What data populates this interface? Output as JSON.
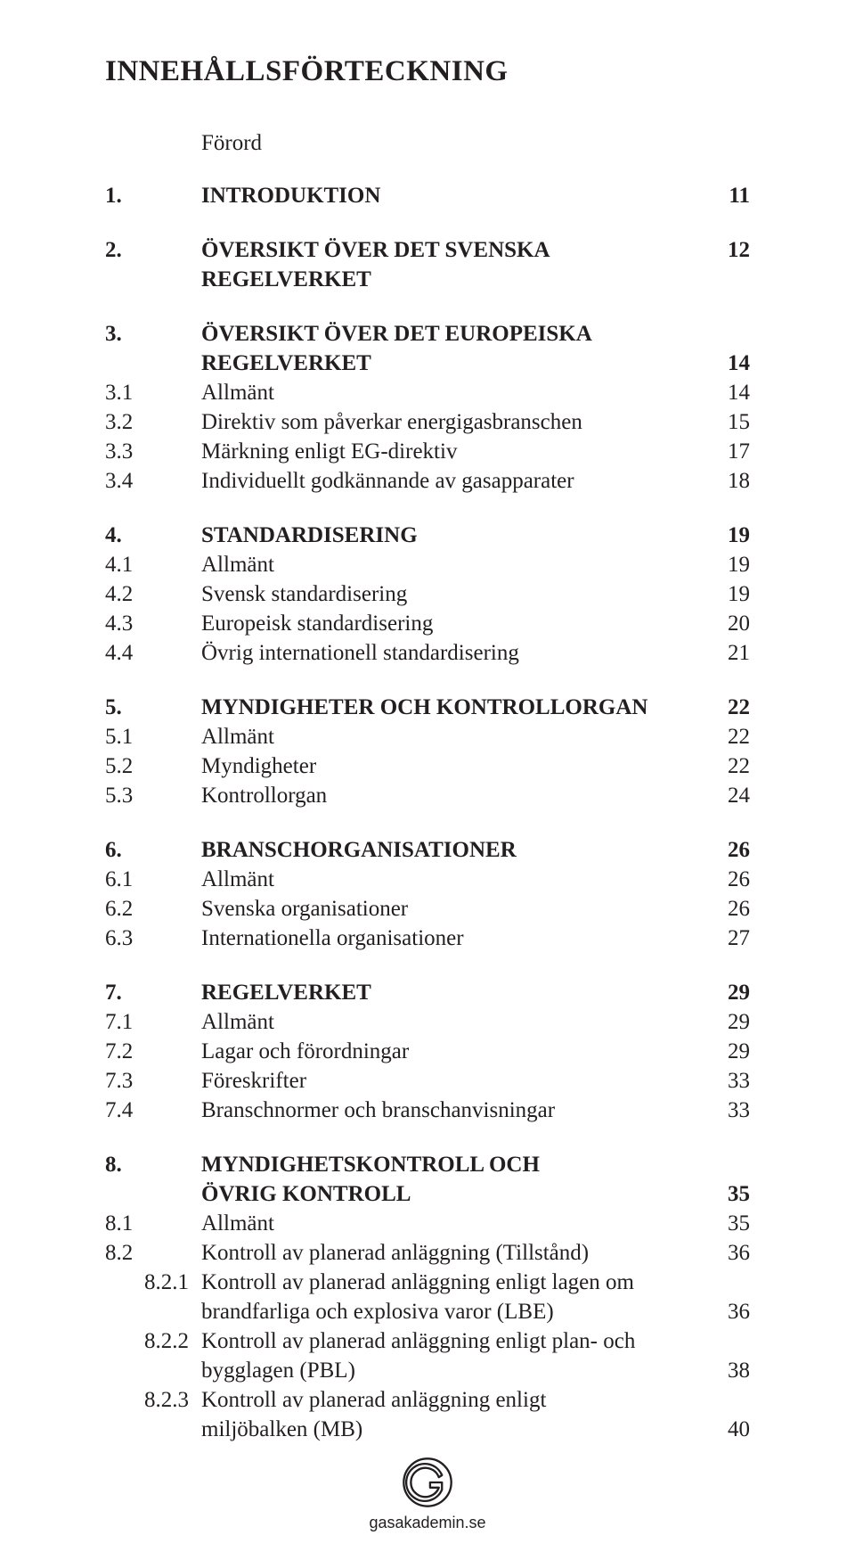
{
  "colors": {
    "text": "#231f20",
    "background": "#ffffff",
    "logo_stroke": "#231f20"
  },
  "typography": {
    "body_font": "Adobe Garamond Pro, Garamond, Times New Roman, serif",
    "body_size_pt": 19,
    "title_size_pt": 25,
    "footer_font": "Arial, Helvetica, sans-serif"
  },
  "title": "INNEHÅLLSFÖRTECKNING",
  "foreword": "Förord",
  "sections": [
    {
      "num": "1.",
      "label": "INTRODUKTION",
      "page": "11",
      "subs": []
    },
    {
      "num": "2.",
      "label": "ÖVERSIKT ÖVER DET SVENSKA REGELVERKET",
      "page": "12",
      "subs": []
    },
    {
      "num": "3.",
      "label_lines": [
        "ÖVERSIKT ÖVER DET EUROPEISKA",
        "REGELVERKET"
      ],
      "page": "14",
      "subs": [
        {
          "num": "3.1",
          "label": "Allmänt",
          "page": "14"
        },
        {
          "num": "3.2",
          "label": "Direktiv som påverkar energigasbranschen",
          "page": "15"
        },
        {
          "num": "3.3",
          "label": "Märkning enligt EG-direktiv",
          "page": "17"
        },
        {
          "num": "3.4",
          "label": "Individuellt godkännande av gasapparater",
          "page": "18"
        }
      ]
    },
    {
      "num": "4.",
      "label": "STANDARDISERING",
      "page": "19",
      "subs": [
        {
          "num": "4.1",
          "label": "Allmänt",
          "page": "19"
        },
        {
          "num": "4.2",
          "label": "Svensk standardisering",
          "page": "19"
        },
        {
          "num": "4.3",
          "label": "Europeisk standardisering",
          "page": "20"
        },
        {
          "num": "4.4",
          "label": "Övrig internationell standardisering",
          "page": "21"
        }
      ]
    },
    {
      "num": "5.",
      "label": "MYNDIGHETER OCH KONTROLLORGAN",
      "page": "22",
      "subs": [
        {
          "num": "5.1",
          "label": "Allmänt",
          "page": "22"
        },
        {
          "num": "5.2",
          "label": "Myndigheter",
          "page": "22"
        },
        {
          "num": "5.3",
          "label": "Kontrollorgan",
          "page": "24"
        }
      ]
    },
    {
      "num": "6.",
      "label": "BRANSCHORGANISATIONER",
      "page": "26",
      "subs": [
        {
          "num": "6.1",
          "label": "Allmänt",
          "page": "26"
        },
        {
          "num": "6.2",
          "label": "Svenska organisationer",
          "page": "26"
        },
        {
          "num": "6.3",
          "label": "Internationella organisationer",
          "page": "27"
        }
      ]
    },
    {
      "num": "7.",
      "label": "REGELVERKET",
      "page": "29",
      "subs": [
        {
          "num": "7.1",
          "label": "Allmänt",
          "page": "29"
        },
        {
          "num": "7.2",
          "label": "Lagar och förordningar",
          "page": "29"
        },
        {
          "num": "7.3",
          "label": "Föreskrifter",
          "page": "33"
        },
        {
          "num": "7.4",
          "label": "Branschnormer och branschanvisningar",
          "page": "33"
        }
      ]
    },
    {
      "num": "8.",
      "label_lines": [
        "MYNDIGHETSKONTROLL OCH",
        "ÖVRIG KONTROLL"
      ],
      "page": "35",
      "subs": [
        {
          "num": "8.1",
          "label": "Allmänt",
          "page": "35"
        },
        {
          "num": "8.2",
          "label": "Kontroll av planerad anläggning (Tillstånd)",
          "page": "36"
        },
        {
          "num": "8.2.1",
          "indent": true,
          "label_lines": [
            "Kontroll av planerad anläggning enligt lagen om",
            "brandfarliga och explosiva varor (LBE)"
          ],
          "page": "36"
        },
        {
          "num": "8.2.2",
          "indent": true,
          "label_lines": [
            "Kontroll av planerad anläggning enligt plan- och",
            "bygglagen (PBL)"
          ],
          "page": "38"
        },
        {
          "num": "8.2.3",
          "indent": true,
          "label_lines": [
            "Kontroll av planerad anläggning enligt",
            "miljöbalken (MB)"
          ],
          "page": "40"
        }
      ]
    }
  ],
  "footer": {
    "site": "gasakademin.se"
  }
}
